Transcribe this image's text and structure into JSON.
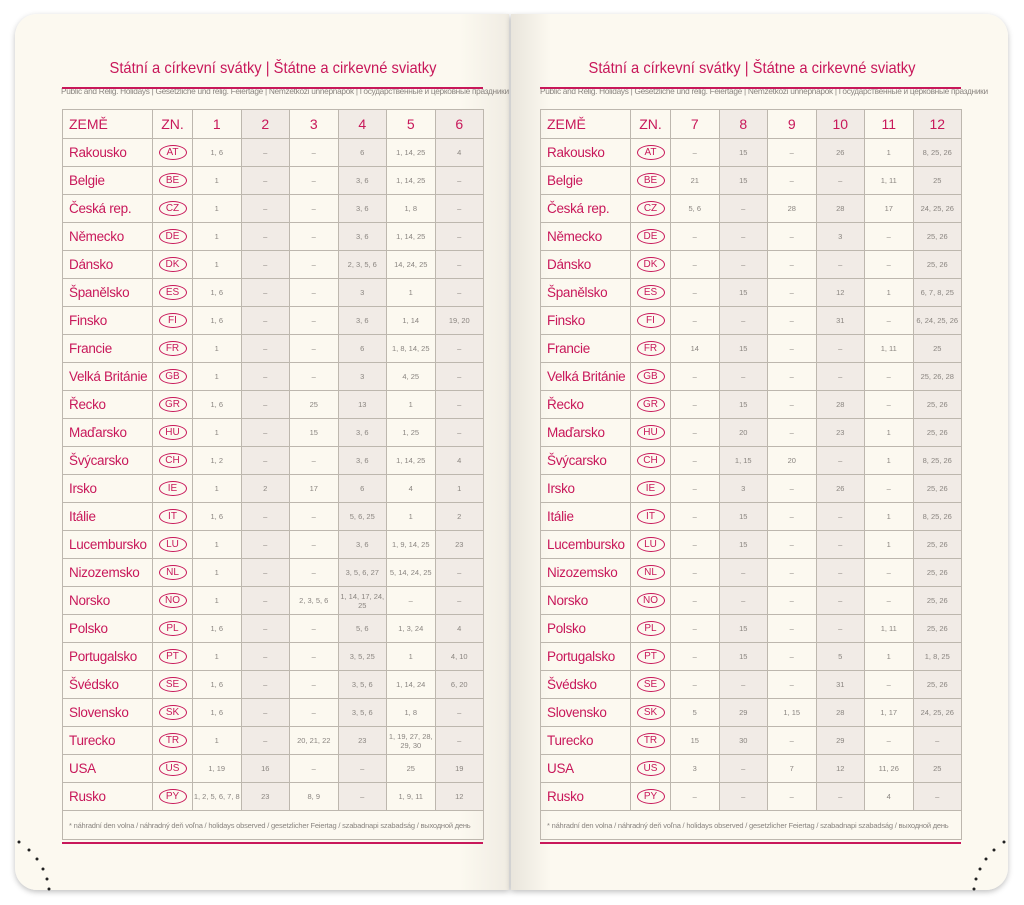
{
  "title": "Státní a církevní svátky | Štátne a cirkevné sviatky",
  "subtitle": "Public and Relig. Holidays | Gesetzliche und relig. Feiertage | Nemzetközi ünnepnapok | Государственные и церковные праздники",
  "headers": {
    "country": "ZEMĚ",
    "code": "ZN."
  },
  "footnote": "* náhradní den volna / náhradný deň voľna / holidays observed / gesetzlicher Feiertag / szabadnapi szabadság / выходной день",
  "colors": {
    "accent": "#c8185a",
    "shade": "#f1ebe6",
    "paper": "#fcf9f0"
  },
  "countries": [
    {
      "name": "Rakousko",
      "code": "AT"
    },
    {
      "name": "Belgie",
      "code": "BE"
    },
    {
      "name": "Česká rep.",
      "code": "CZ"
    },
    {
      "name": "Německo",
      "code": "DE"
    },
    {
      "name": "Dánsko",
      "code": "DK"
    },
    {
      "name": "Španělsko",
      "code": "ES"
    },
    {
      "name": "Finsko",
      "code": "FI"
    },
    {
      "name": "Francie",
      "code": "FR"
    },
    {
      "name": "Velká Británie",
      "code": "GB"
    },
    {
      "name": "Řecko",
      "code": "GR"
    },
    {
      "name": "Maďarsko",
      "code": "HU"
    },
    {
      "name": "Švýcarsko",
      "code": "CH"
    },
    {
      "name": "Irsko",
      "code": "IE"
    },
    {
      "name": "Itálie",
      "code": "IT"
    },
    {
      "name": "Lucembursko",
      "code": "LU"
    },
    {
      "name": "Nizozemsko",
      "code": "NL"
    },
    {
      "name": "Norsko",
      "code": "NO"
    },
    {
      "name": "Polsko",
      "code": "PL"
    },
    {
      "name": "Portugalsko",
      "code": "PT"
    },
    {
      "name": "Švédsko",
      "code": "SE"
    },
    {
      "name": "Slovensko",
      "code": "SK"
    },
    {
      "name": "Turecko",
      "code": "TR"
    },
    {
      "name": "USA",
      "code": "US"
    },
    {
      "name": "Rusko",
      "code": "PY"
    }
  ],
  "left": {
    "months": [
      "1",
      "2",
      "3",
      "4",
      "5",
      "6"
    ],
    "rows": [
      [
        "1, 6",
        "–",
        "–",
        "6",
        "1, 14, 25",
        "4"
      ],
      [
        "1",
        "–",
        "–",
        "3, 6",
        "1, 14, 25",
        "–"
      ],
      [
        "1",
        "–",
        "–",
        "3, 6",
        "1, 8",
        "–"
      ],
      [
        "1",
        "–",
        "–",
        "3, 6",
        "1, 14, 25",
        "–"
      ],
      [
        "1",
        "–",
        "–",
        "2, 3, 5, 6",
        "14, 24, 25",
        "–"
      ],
      [
        "1, 6",
        "–",
        "–",
        "3",
        "1",
        "–"
      ],
      [
        "1, 6",
        "–",
        "–",
        "3, 6",
        "1, 14",
        "19, 20"
      ],
      [
        "1",
        "–",
        "–",
        "6",
        "1, 8, 14, 25",
        "–"
      ],
      [
        "1",
        "–",
        "–",
        "3",
        "4, 25",
        "–"
      ],
      [
        "1, 6",
        "–",
        "25",
        "13",
        "1",
        "–"
      ],
      [
        "1",
        "–",
        "15",
        "3, 6",
        "1, 25",
        "–"
      ],
      [
        "1, 2",
        "–",
        "–",
        "3, 6",
        "1, 14, 25",
        "4"
      ],
      [
        "1",
        "2",
        "17",
        "6",
        "4",
        "1"
      ],
      [
        "1, 6",
        "–",
        "–",
        "5, 6, 25",
        "1",
        "2"
      ],
      [
        "1",
        "–",
        "–",
        "3, 6",
        "1, 9, 14, 25",
        "23"
      ],
      [
        "1",
        "–",
        "–",
        "3, 5, 6, 27",
        "5, 14, 24, 25",
        "–"
      ],
      [
        "1",
        "–",
        "2, 3, 5, 6",
        "1, 14, 17, 24, 25",
        "–",
        "–"
      ],
      [
        "1, 6",
        "–",
        "–",
        "5, 6",
        "1, 3, 24",
        "4"
      ],
      [
        "1",
        "–",
        "–",
        "3, 5, 25",
        "1",
        "4, 10"
      ],
      [
        "1, 6",
        "–",
        "–",
        "3, 5, 6",
        "1, 14, 24",
        "6, 20"
      ],
      [
        "1, 6",
        "–",
        "–",
        "3, 5, 6",
        "1, 8",
        "–"
      ],
      [
        "1",
        "–",
        "20, 21, 22",
        "23",
        "1, 19, 27, 28, 29, 30",
        "–"
      ],
      [
        "1, 19",
        "16",
        "–",
        "–",
        "25",
        "19"
      ],
      [
        "1, 2, 5, 6, 7, 8",
        "23",
        "8, 9",
        "–",
        "1, 9, 11",
        "12"
      ]
    ]
  },
  "right": {
    "months": [
      "7",
      "8",
      "9",
      "10",
      "11",
      "12"
    ],
    "rows": [
      [
        "–",
        "15",
        "–",
        "26",
        "1",
        "8, 25, 26"
      ],
      [
        "21",
        "15",
        "–",
        "–",
        "1, 11",
        "25"
      ],
      [
        "5, 6",
        "–",
        "28",
        "28",
        "17",
        "24, 25, 26"
      ],
      [
        "–",
        "–",
        "–",
        "3",
        "–",
        "25, 26"
      ],
      [
        "–",
        "–",
        "–",
        "–",
        "–",
        "25, 26"
      ],
      [
        "–",
        "15",
        "–",
        "12",
        "1",
        "6, 7, 8, 25"
      ],
      [
        "–",
        "–",
        "–",
        "31",
        "–",
        "6, 24, 25, 26"
      ],
      [
        "14",
        "15",
        "–",
        "–",
        "1, 11",
        "25"
      ],
      [
        "–",
        "–",
        "–",
        "–",
        "–",
        "25, 26, 28"
      ],
      [
        "–",
        "15",
        "–",
        "28",
        "–",
        "25, 26"
      ],
      [
        "–",
        "20",
        "–",
        "23",
        "1",
        "25, 26"
      ],
      [
        "–",
        "1, 15",
        "20",
        "–",
        "1",
        "8, 25, 26"
      ],
      [
        "–",
        "3",
        "–",
        "26",
        "–",
        "25, 26"
      ],
      [
        "–",
        "15",
        "–",
        "–",
        "1",
        "8, 25, 26"
      ],
      [
        "–",
        "15",
        "–",
        "–",
        "1",
        "25, 26"
      ],
      [
        "–",
        "–",
        "–",
        "–",
        "–",
        "25, 26"
      ],
      [
        "–",
        "–",
        "–",
        "–",
        "–",
        "25, 26"
      ],
      [
        "–",
        "15",
        "–",
        "–",
        "1, 11",
        "25, 26"
      ],
      [
        "–",
        "15",
        "–",
        "5",
        "1",
        "1, 8, 25"
      ],
      [
        "–",
        "–",
        "–",
        "31",
        "–",
        "25, 26"
      ],
      [
        "5",
        "29",
        "1, 15",
        "28",
        "1, 17",
        "24, 25, 26"
      ],
      [
        "15",
        "30",
        "–",
        "29",
        "–",
        "–"
      ],
      [
        "3",
        "–",
        "7",
        "12",
        "11, 26",
        "25"
      ],
      [
        "–",
        "–",
        "–",
        "–",
        "4",
        "–"
      ]
    ]
  }
}
